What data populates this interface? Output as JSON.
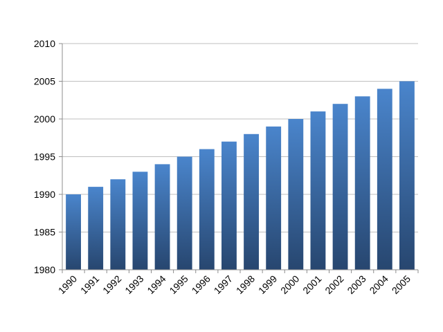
{
  "chart_data": {
    "type": "bar",
    "categories": [
      "1990",
      "1991",
      "1992",
      "1993",
      "1994",
      "1995",
      "1996",
      "1997",
      "1998",
      "1999",
      "2000",
      "2001",
      "2002",
      "2003",
      "2004",
      "2005"
    ],
    "series": [
      {
        "values": [
          1990,
          1991,
          1992,
          1993,
          1994,
          1995,
          1996,
          1997,
          1998,
          1999,
          2000,
          2001,
          2002,
          2003,
          2004,
          2005
        ]
      }
    ],
    "ylim": [
      1980,
      2010
    ],
    "yticks": [
      1980,
      1985,
      1990,
      1995,
      2000,
      2005,
      2010
    ],
    "grid": true,
    "legend": "none",
    "title": "",
    "xlabel": "",
    "ylabel": "",
    "colors": {
      "bar_top": "#4a85cc",
      "bar_bottom": "#27466f",
      "grid": "#bfbfbf",
      "axis": "#8c8c8c"
    }
  }
}
